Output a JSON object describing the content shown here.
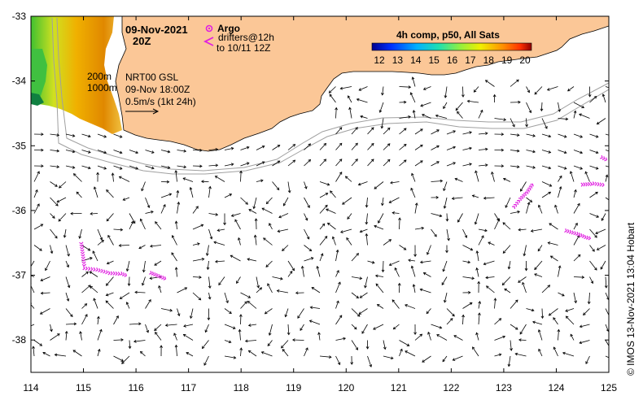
{
  "header": {
    "date": "09-Nov-2021",
    "hour": "20Z"
  },
  "legend": {
    "argo_label": "Argo",
    "drifters_label": "drifters@12h",
    "drifters_to": "to 10/11 12Z",
    "isobath_200": "200m",
    "isobath_1000": "1000m",
    "current_source": "NRT00 GSL",
    "current_time": "09-Nov 18:00Z",
    "scale_label": "0.5m/s (1kt 24h)"
  },
  "colorbar": {
    "title": "4h comp, p50, All Sats",
    "ticks": [
      "12",
      "13",
      "14",
      "15",
      "16",
      "17",
      "18",
      "19",
      "20"
    ],
    "min": 12,
    "max": 20
  },
  "axes": {
    "x_ticks": [
      "114",
      "115",
      "116",
      "117",
      "118",
      "119",
      "120",
      "121",
      "122",
      "123",
      "124",
      "125"
    ],
    "y_ticks": [
      "-33",
      "-34",
      "-35",
      "-36",
      "-37",
      "-38"
    ],
    "lon_range": [
      114,
      125
    ],
    "lat_range": [
      -38.5,
      -33
    ]
  },
  "credit": "© IMOS 13-Nov-2021 13:04 Hobart",
  "colors": {
    "land": "#fbc797",
    "drifter": "#e020e0",
    "isobath": "#a0a0a0"
  }
}
